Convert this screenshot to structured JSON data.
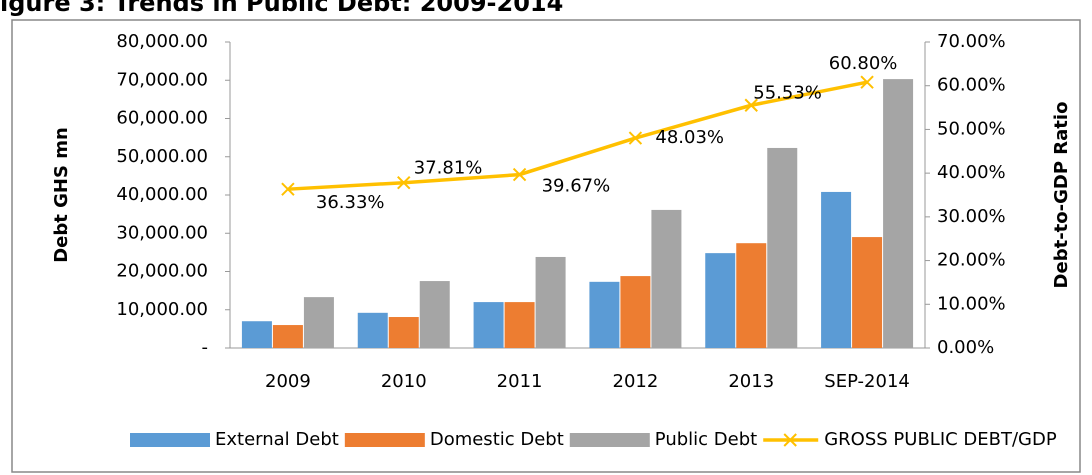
{
  "chart_data": {
    "type": "bar",
    "title": "igure 3: Trends in Public Debt: 2009-2014",
    "y_label": "Debt GHS mn",
    "y2_label": "Debt-to-GDP Ratio",
    "categories": [
      "2009",
      "2010",
      "2011",
      "2012",
      "2013",
      "SEP-2014"
    ],
    "series": [
      {
        "name": "External Debt",
        "color": "#5b9bd5",
        "values": [
          7000,
          9200,
          12000,
          17300,
          24800,
          40800
        ]
      },
      {
        "name": "Domestic Debt",
        "color": "#ed7d31",
        "values": [
          6000,
          8100,
          12000,
          18800,
          27400,
          29000
        ]
      },
      {
        "name": "Public Debt",
        "color": "#a5a5a5",
        "values": [
          13300,
          17500,
          23800,
          36100,
          52300,
          70300
        ]
      },
      {
        "name": "GROSS PUBLIC DEBT/GDP",
        "color": "#ffc000",
        "type": "line",
        "axis": "y2",
        "values": [
          36.33,
          37.81,
          39.67,
          48.03,
          55.53,
          60.8
        ],
        "value_labels": [
          "36.33%",
          "37.81%",
          "39.67%",
          "48.03%",
          "55.53%",
          "60.80%"
        ]
      }
    ],
    "ylim": [
      0,
      80000
    ],
    "yticks": [
      {
        "value": 0,
        "label": "-"
      },
      {
        "value": 10000,
        "label": "10,000.00"
      },
      {
        "value": 20000,
        "label": "20,000.00"
      },
      {
        "value": 30000,
        "label": "30,000.00"
      },
      {
        "value": 40000,
        "label": "40,000.00"
      },
      {
        "value": 50000,
        "label": "50,000.00"
      },
      {
        "value": 60000,
        "label": "60,000.00"
      },
      {
        "value": 70000,
        "label": "70,000.00"
      },
      {
        "value": 80000,
        "label": "80,000.00"
      }
    ],
    "y2lim": [
      0,
      70
    ],
    "y2ticks": [
      {
        "value": 0,
        "label": "0.00%"
      },
      {
        "value": 10,
        "label": "10.00%"
      },
      {
        "value": 20,
        "label": "20.00%"
      },
      {
        "value": 30,
        "label": "30.00%"
      },
      {
        "value": 40,
        "label": "40.00%"
      },
      {
        "value": 50,
        "label": "50.00%"
      },
      {
        "value": 60,
        "label": "60.00%"
      },
      {
        "value": 70,
        "label": "70.00%"
      }
    ],
    "grid": false,
    "legend": "bottom"
  }
}
